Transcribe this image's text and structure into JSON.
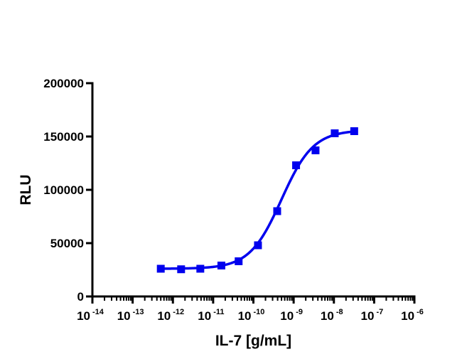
{
  "chart_data": {
    "type": "scatter",
    "title": "",
    "xlabel": "IL-7 [g/mL]",
    "ylabel": "RLU",
    "x_scale": "log",
    "xlim": [
      1e-14,
      1e-06
    ],
    "ylim": [
      0,
      200000
    ],
    "x_ticks": [
      {
        "base": "10",
        "exp": "-14"
      },
      {
        "base": "10",
        "exp": "-13"
      },
      {
        "base": "10",
        "exp": "-12"
      },
      {
        "base": "10",
        "exp": "-11"
      },
      {
        "base": "10",
        "exp": "-10"
      },
      {
        "base": "10",
        "exp": "-9"
      },
      {
        "base": "10",
        "exp": "-8"
      },
      {
        "base": "10",
        "exp": "-7"
      },
      {
        "base": "10",
        "exp": "-6"
      }
    ],
    "y_ticks": [
      "0",
      "50000",
      "100000",
      "150000",
      "200000"
    ],
    "grid": false,
    "legend": "none",
    "color": "#0000ee",
    "series": [
      {
        "points": [
          {
            "x": 5e-13,
            "y": 26000
          },
          {
            "x": 1.6e-12,
            "y": 25500
          },
          {
            "x": 4.8e-12,
            "y": 26000
          },
          {
            "x": 1.6e-11,
            "y": 29000
          },
          {
            "x": 4.3e-11,
            "y": 33000
          },
          {
            "x": 1.3e-10,
            "y": 48000
          },
          {
            "x": 3.9e-10,
            "y": 80000
          },
          {
            "x": 1.15e-09,
            "y": 123000
          },
          {
            "x": 3.5e-09,
            "y": 137000
          },
          {
            "x": 1.05e-08,
            "y": 153000
          },
          {
            "x": 3.2e-08,
            "y": 155000
          }
        ],
        "fit": {
          "model": "4PL",
          "bottom": 26000,
          "top": 156000,
          "ec50": 5e-10,
          "hill": 1.1,
          "x_range": [
            5e-13,
            3.2e-08
          ]
        }
      }
    ]
  }
}
